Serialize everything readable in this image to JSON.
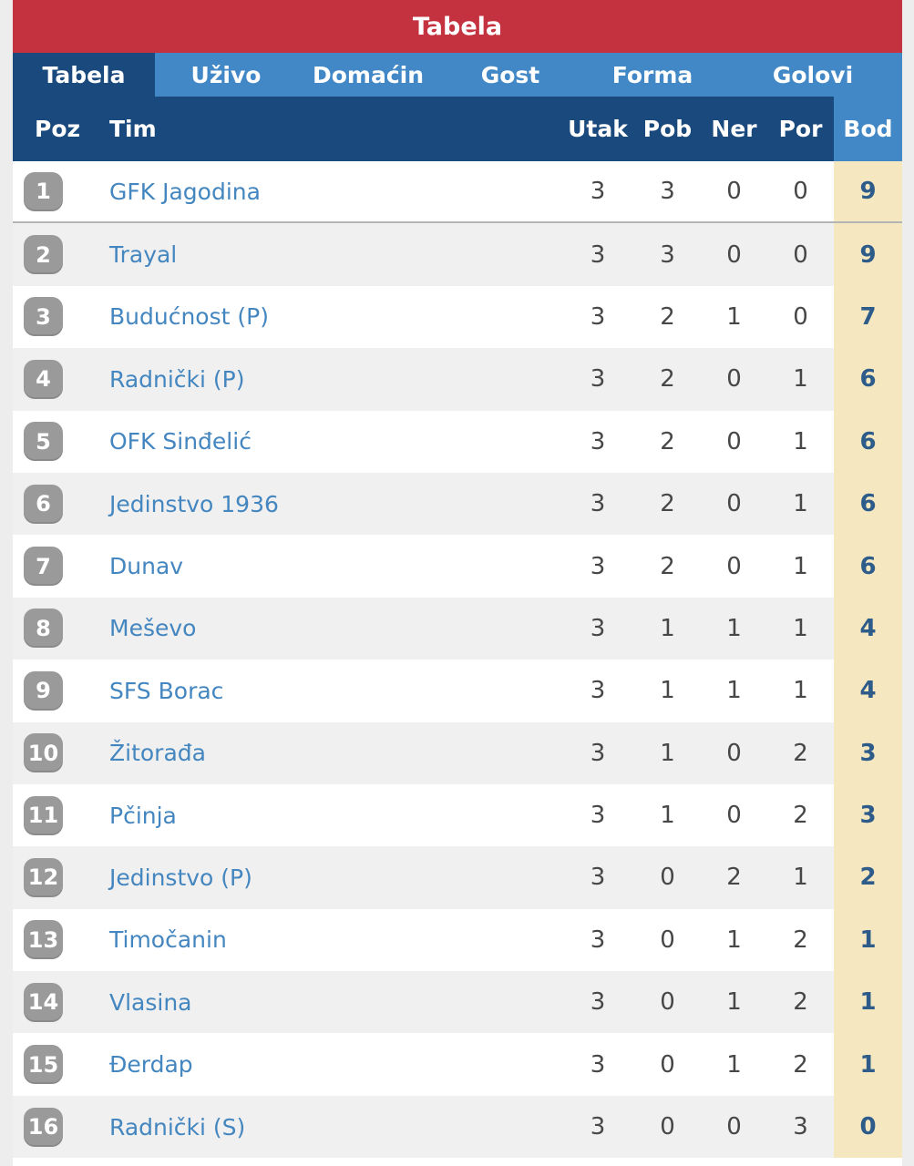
{
  "header": {
    "title": "Tabela"
  },
  "tabs": [
    {
      "label": "Tabela",
      "active": true
    },
    {
      "label": "Uživo",
      "active": false
    },
    {
      "label": "Domaćin",
      "active": false
    },
    {
      "label": "Gost",
      "active": false
    },
    {
      "label": "Forma",
      "active": false
    },
    {
      "label": "Golovi",
      "active": false
    }
  ],
  "columns": {
    "poz": "Poz",
    "tim": "Tim",
    "utak": "Utak",
    "pob": "Pob",
    "ner": "Ner",
    "por": "Por",
    "bod": "Bod"
  },
  "rows": [
    {
      "pos": "1",
      "team": "GFK Jagodina",
      "utak": "3",
      "pob": "3",
      "ner": "0",
      "por": "0",
      "bod": "9",
      "divider_below": true
    },
    {
      "pos": "2",
      "team": "Trayal",
      "utak": "3",
      "pob": "3",
      "ner": "0",
      "por": "0",
      "bod": "9",
      "divider_below": false
    },
    {
      "pos": "3",
      "team": "Budućnost (P)",
      "utak": "3",
      "pob": "2",
      "ner": "1",
      "por": "0",
      "bod": "7",
      "divider_below": false
    },
    {
      "pos": "4",
      "team": "Radnički (P)",
      "utak": "3",
      "pob": "2",
      "ner": "0",
      "por": "1",
      "bod": "6",
      "divider_below": false
    },
    {
      "pos": "5",
      "team": "OFK Sinđelić",
      "utak": "3",
      "pob": "2",
      "ner": "0",
      "por": "1",
      "bod": "6",
      "divider_below": false
    },
    {
      "pos": "6",
      "team": "Jedinstvo 1936",
      "utak": "3",
      "pob": "2",
      "ner": "0",
      "por": "1",
      "bod": "6",
      "divider_below": false
    },
    {
      "pos": "7",
      "team": "Dunav",
      "utak": "3",
      "pob": "2",
      "ner": "0",
      "por": "1",
      "bod": "6",
      "divider_below": false
    },
    {
      "pos": "8",
      "team": "Meševo",
      "utak": "3",
      "pob": "1",
      "ner": "1",
      "por": "1",
      "bod": "4",
      "divider_below": false
    },
    {
      "pos": "9",
      "team": "SFS Borac",
      "utak": "3",
      "pob": "1",
      "ner": "1",
      "por": "1",
      "bod": "4",
      "divider_below": false
    },
    {
      "pos": "10",
      "team": "Žitorađa",
      "utak": "3",
      "pob": "1",
      "ner": "0",
      "por": "2",
      "bod": "3",
      "divider_below": false
    },
    {
      "pos": "11",
      "team": "Pčinja",
      "utak": "3",
      "pob": "1",
      "ner": "0",
      "por": "2",
      "bod": "3",
      "divider_below": false
    },
    {
      "pos": "12",
      "team": "Jedinstvo (P)",
      "utak": "3",
      "pob": "0",
      "ner": "2",
      "por": "1",
      "bod": "2",
      "divider_below": false
    },
    {
      "pos": "13",
      "team": "Timočanin",
      "utak": "3",
      "pob": "0",
      "ner": "1",
      "por": "2",
      "bod": "1",
      "divider_below": false
    },
    {
      "pos": "14",
      "team": "Vlasina",
      "utak": "3",
      "pob": "0",
      "ner": "1",
      "por": "2",
      "bod": "1",
      "divider_below": false
    },
    {
      "pos": "15",
      "team": "Đerdap",
      "utak": "3",
      "pob": "0",
      "ner": "1",
      "por": "2",
      "bod": "1",
      "divider_below": false
    },
    {
      "pos": "16",
      "team": "Radnički (S)",
      "utak": "3",
      "pob": "0",
      "ner": "0",
      "por": "3",
      "bod": "0",
      "divider_below": false
    }
  ],
  "colors": {
    "title_red": "#c5323f",
    "navy": "#1a4a7d",
    "tab_blue": "#4288c6",
    "points_beige": "#f5e7c0",
    "team_link_blue": "#4486bf",
    "badge_gray": "#9a9a9a",
    "row_alt_gray": "#f0f0f0"
  }
}
